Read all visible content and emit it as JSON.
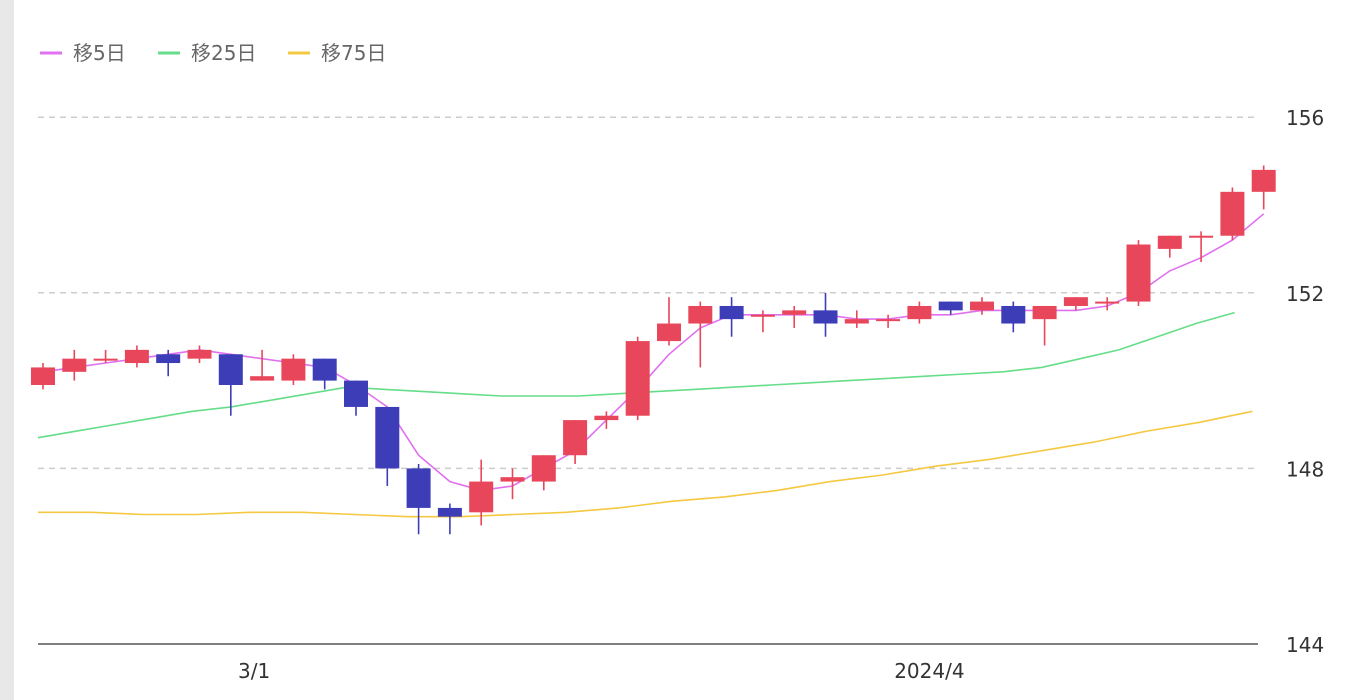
{
  "chart_data": {
    "type": "candlestick",
    "title": "",
    "legend": [
      {
        "name": "移5日",
        "color": "#e070f0"
      },
      {
        "name": "移25日",
        "color": "#66dd88"
      },
      {
        "name": "移75日",
        "color": "#f5c842"
      }
    ],
    "legend_position": "top-left",
    "y_axis": {
      "position": "right",
      "ticks": [
        144,
        148,
        152,
        156
      ],
      "tick_labels": [
        "144",
        "148",
        "152",
        "156"
      ],
      "range": [
        144,
        157.5
      ],
      "grid": "dashed"
    },
    "x_axis": {
      "tick_labels": [
        {
          "label": "3/1",
          "index": 7
        },
        {
          "label": "2024/4",
          "index": 28
        }
      ]
    },
    "colors": {
      "up": "#e8465a",
      "down": "#3d3db8"
    },
    "candles": [
      {
        "o": 149.9,
        "h": 150.4,
        "l": 149.8,
        "c": 150.3
      },
      {
        "o": 150.2,
        "h": 150.7,
        "l": 150.0,
        "c": 150.5
      },
      {
        "o": 150.5,
        "h": 150.7,
        "l": 150.4,
        "c": 150.5
      },
      {
        "o": 150.4,
        "h": 150.8,
        "l": 150.3,
        "c": 150.7
      },
      {
        "o": 150.6,
        "h": 150.7,
        "l": 150.1,
        "c": 150.4
      },
      {
        "o": 150.5,
        "h": 150.8,
        "l": 150.4,
        "c": 150.7
      },
      {
        "o": 150.6,
        "h": 150.6,
        "l": 149.2,
        "c": 149.9
      },
      {
        "o": 150.0,
        "h": 150.7,
        "l": 150.0,
        "c": 150.1
      },
      {
        "o": 150.0,
        "h": 150.6,
        "l": 149.9,
        "c": 150.5
      },
      {
        "o": 150.5,
        "h": 150.5,
        "l": 149.8,
        "c": 150.0
      },
      {
        "o": 150.0,
        "h": 150.0,
        "l": 149.2,
        "c": 149.4
      },
      {
        "o": 149.4,
        "h": 149.4,
        "l": 147.6,
        "c": 148.0
      },
      {
        "o": 148.0,
        "h": 148.1,
        "l": 146.5,
        "c": 147.1
      },
      {
        "o": 147.1,
        "h": 147.2,
        "l": 146.5,
        "c": 146.9
      },
      {
        "o": 147.0,
        "h": 148.2,
        "l": 146.7,
        "c": 147.7
      },
      {
        "o": 147.7,
        "h": 148.0,
        "l": 147.3,
        "c": 147.8
      },
      {
        "o": 147.7,
        "h": 148.3,
        "l": 147.5,
        "c": 148.3
      },
      {
        "o": 148.3,
        "h": 149.1,
        "l": 148.1,
        "c": 149.1
      },
      {
        "o": 149.1,
        "h": 149.3,
        "l": 148.9,
        "c": 149.2
      },
      {
        "o": 149.2,
        "h": 151.0,
        "l": 149.1,
        "c": 150.9
      },
      {
        "o": 150.9,
        "h": 151.9,
        "l": 150.8,
        "c": 151.3
      },
      {
        "o": 151.3,
        "h": 151.8,
        "l": 150.3,
        "c": 151.7
      },
      {
        "o": 151.7,
        "h": 151.9,
        "l": 151.0,
        "c": 151.4
      },
      {
        "o": 151.5,
        "h": 151.6,
        "l": 151.1,
        "c": 151.5
      },
      {
        "o": 151.5,
        "h": 151.7,
        "l": 151.2,
        "c": 151.6
      },
      {
        "o": 151.6,
        "h": 152.0,
        "l": 151.0,
        "c": 151.3
      },
      {
        "o": 151.3,
        "h": 151.6,
        "l": 151.2,
        "c": 151.4
      },
      {
        "o": 151.4,
        "h": 151.5,
        "l": 151.2,
        "c": 151.4
      },
      {
        "o": 151.4,
        "h": 151.8,
        "l": 151.3,
        "c": 151.7
      },
      {
        "o": 151.8,
        "h": 151.8,
        "l": 151.5,
        "c": 151.6
      },
      {
        "o": 151.6,
        "h": 151.9,
        "l": 151.5,
        "c": 151.8
      },
      {
        "o": 151.7,
        "h": 151.8,
        "l": 151.1,
        "c": 151.3
      },
      {
        "o": 151.4,
        "h": 151.7,
        "l": 150.8,
        "c": 151.7
      },
      {
        "o": 151.7,
        "h": 151.9,
        "l": 151.6,
        "c": 151.9
      },
      {
        "o": 151.8,
        "h": 151.9,
        "l": 151.6,
        "c": 151.8
      },
      {
        "o": 151.8,
        "h": 153.2,
        "l": 151.7,
        "c": 153.1
      },
      {
        "o": 153.0,
        "h": 153.3,
        "l": 152.8,
        "c": 153.3
      },
      {
        "o": 153.3,
        "h": 153.4,
        "l": 152.7,
        "c": 153.3
      },
      {
        "o": 153.3,
        "h": 154.4,
        "l": 153.2,
        "c": 154.3
      },
      {
        "o": 154.3,
        "h": 154.9,
        "l": 153.9,
        "c": 154.8
      }
    ],
    "series": [
      {
        "name": "移5日",
        "values": [
          150.2,
          150.3,
          150.4,
          150.5,
          150.6,
          150.7,
          150.6,
          150.5,
          150.4,
          150.3,
          149.9,
          149.4,
          148.3,
          147.7,
          147.5,
          147.6,
          148.0,
          148.4,
          149.1,
          149.8,
          150.6,
          151.2,
          151.5,
          151.5,
          151.5,
          151.5,
          151.4,
          151.4,
          151.5,
          151.5,
          151.6,
          151.6,
          151.6,
          151.6,
          151.7,
          152.0,
          152.5,
          152.8,
          153.2,
          153.8
        ]
      },
      {
        "name": "移25日",
        "values": [
          148.7,
          148.85,
          149.0,
          149.15,
          149.3,
          149.4,
          149.55,
          149.7,
          149.85,
          149.8,
          149.75,
          149.7,
          149.65,
          149.65,
          149.65,
          149.7,
          149.75,
          149.8,
          149.85,
          149.9,
          149.95,
          150.0,
          150.05,
          150.1,
          150.15,
          150.2,
          150.3,
          150.5,
          150.7,
          151.0,
          151.3,
          151.55
        ]
      },
      {
        "name": "移75日",
        "values": [
          147.0,
          147.0,
          146.95,
          146.95,
          147.0,
          147.0,
          146.95,
          146.9,
          146.9,
          146.95,
          147.0,
          147.1,
          147.25,
          147.35,
          147.5,
          147.7,
          147.85,
          148.05,
          148.2,
          148.4,
          148.6,
          148.85,
          149.05,
          149.3
        ]
      }
    ]
  }
}
